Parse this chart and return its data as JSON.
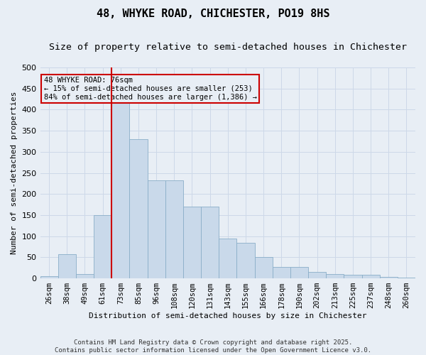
{
  "title": "48, WHYKE ROAD, CHICHESTER, PO19 8HS",
  "subtitle": "Size of property relative to semi-detached houses in Chichester",
  "xlabel": "Distribution of semi-detached houses by size in Chichester",
  "ylabel": "Number of semi-detached properties",
  "categories": [
    "26sqm",
    "38sqm",
    "49sqm",
    "61sqm",
    "73sqm",
    "85sqm",
    "96sqm",
    "108sqm",
    "120sqm",
    "131sqm",
    "143sqm",
    "155sqm",
    "166sqm",
    "178sqm",
    "190sqm",
    "202sqm",
    "213sqm",
    "225sqm",
    "237sqm",
    "248sqm",
    "260sqm"
  ],
  "bar_values": [
    5,
    57,
    10,
    150,
    420,
    330,
    232,
    232,
    170,
    170,
    95,
    85,
    50,
    27,
    27,
    15,
    10,
    8,
    8,
    3,
    1
  ],
  "bar_color": "#c9d9ea",
  "bar_edge_color": "#8aaec8",
  "property_line_bin": 4,
  "annotation_line1": "48 WHYKE ROAD: 76sqm",
  "annotation_line2": "← 15% of semi-detached houses are smaller (253)",
  "annotation_line3": "84% of semi-detached houses are larger (1,386) →",
  "annotation_box_color": "#cc0000",
  "grid_color": "#cdd8e8",
  "background_color": "#e8eef5",
  "footer": "Contains HM Land Registry data © Crown copyright and database right 2025.\nContains public sector information licensed under the Open Government Licence v3.0.",
  "ylim": [
    0,
    500
  ],
  "yticks": [
    0,
    50,
    100,
    150,
    200,
    250,
    300,
    350,
    400,
    450,
    500
  ]
}
